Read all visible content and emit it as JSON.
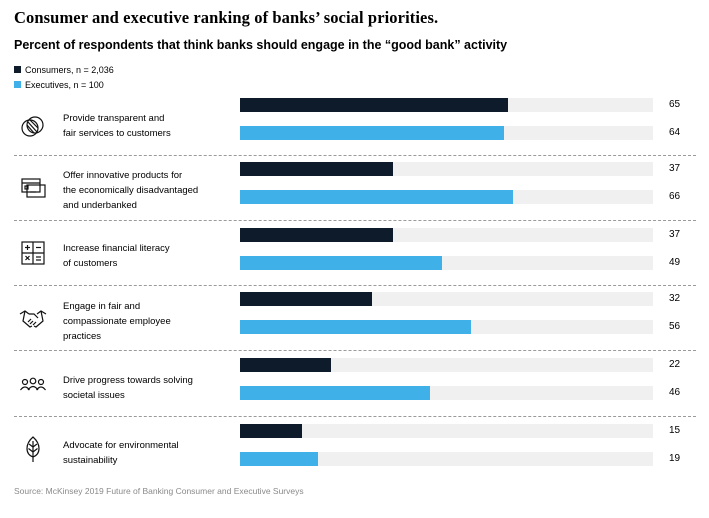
{
  "title": "Consumer and executive ranking of banks’ social priorities.",
  "subtitle": "Percent of respondents that think banks should engage in the “good bank” activity",
  "source": "Source: McKinsey 2019 Future of Banking Consumer and Executive Surveys",
  "colors": {
    "consumers": "#0e1b2b",
    "executives": "#3fb1e8",
    "track": "#f0f0f0"
  },
  "chart_data": {
    "type": "bar",
    "orientation": "horizontal",
    "title": "Consumer and executive ranking of banks’ social priorities.",
    "subtitle": "Percent of respondents that think banks should engage in the “good bank” activity",
    "xlim": [
      0,
      100
    ],
    "grid": false,
    "legend_position": "top-left",
    "categories": [
      "Provide transparent and fair services to customers",
      "Offer innovative products for the economically disadvantaged and underbanked",
      "Increase financial literacy of customers",
      "Engage in fair and compassionate employee practices",
      "Drive progress towards solving societal issues",
      "Advocate for environmental sustainability"
    ],
    "series": [
      {
        "name": "Consumers, n = 2,036",
        "color": "#0e1b2b",
        "values": [
          65,
          37,
          37,
          32,
          22,
          15
        ]
      },
      {
        "name": "Executives, n = 100",
        "color": "#3fb1e8",
        "values": [
          64,
          66,
          49,
          56,
          46,
          19
        ]
      }
    ]
  },
  "rows": [
    {
      "label_lines": [
        "Provide transparent and",
        "fair services to customers"
      ],
      "icon": "transparency-icon"
    },
    {
      "label_lines": [
        "Offer innovative products for",
        "the economically disadvantaged",
        "and underbanked"
      ],
      "icon": "cards-icon"
    },
    {
      "label_lines": [
        "Increase financial literacy",
        "of customers"
      ],
      "icon": "calculator-icon"
    },
    {
      "label_lines": [
        "Engage in fair and",
        "compassionate employee",
        "practices"
      ],
      "icon": "handshake-icon"
    },
    {
      "label_lines": [
        "Drive progress towards solving",
        "societal issues"
      ],
      "icon": "people-icon"
    },
    {
      "label_lines": [
        "Advocate for environmental",
        "sustainability"
      ],
      "icon": "leaf-icon"
    }
  ]
}
